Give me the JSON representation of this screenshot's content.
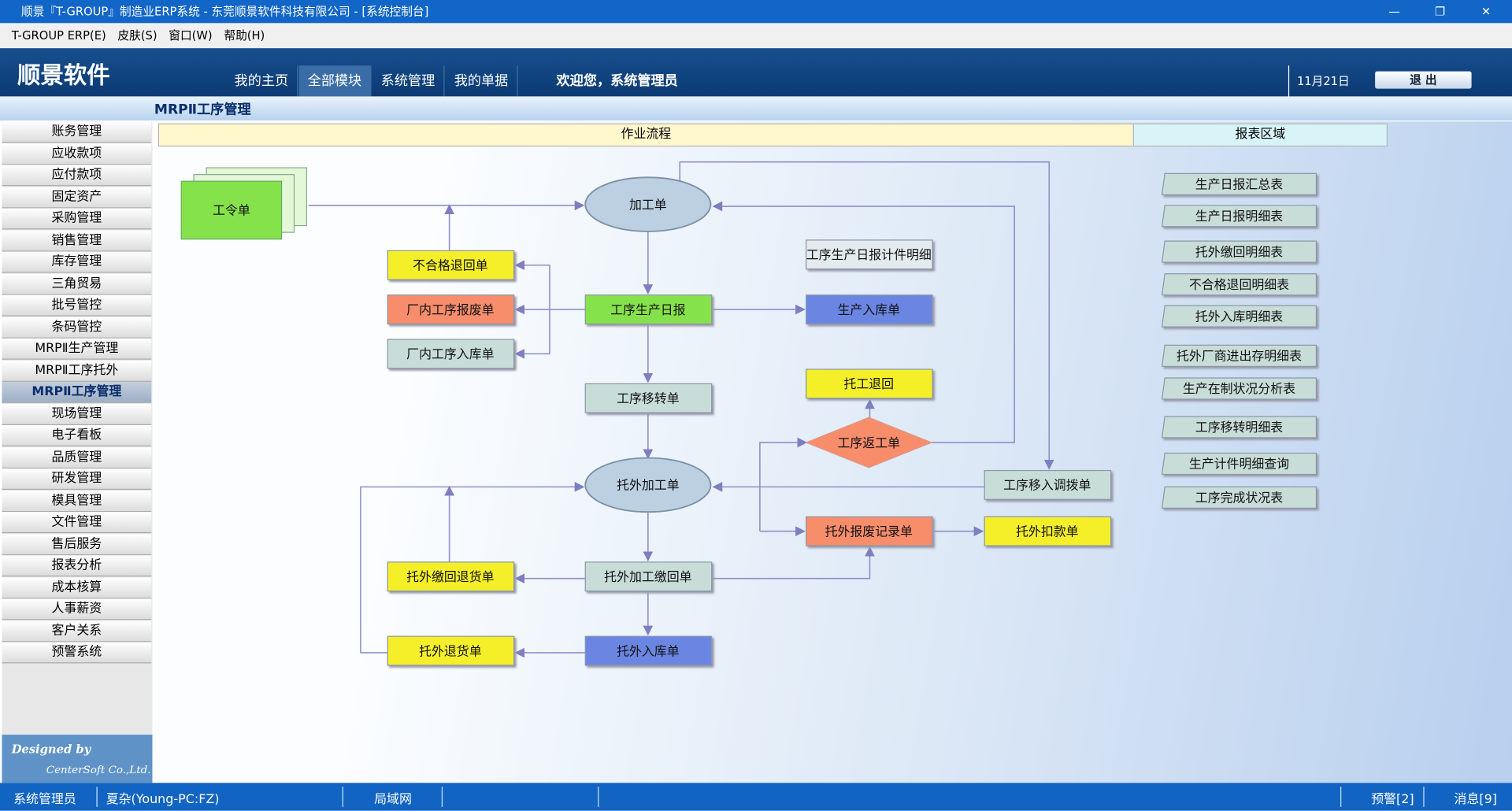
{
  "window": {
    "title": "顺景『T-GROUP』制造业ERP系统 - 东莞顺景软件科技有限公司 - [系统控制台]"
  },
  "menu": [
    "T-GROUP ERP(E)",
    "皮肤(S)",
    "窗口(W)",
    "帮助(H)"
  ],
  "header": {
    "logo": "顺景软件",
    "nav": [
      "我的主页",
      "全部模块",
      "系统管理",
      "我的单据"
    ],
    "welcome": "欢迎您，系统管理员",
    "date": "11月21日",
    "exit": "退 出"
  },
  "module_title": "MRPⅡ工序管理",
  "sidebar": {
    "items": [
      "账务管理",
      "应收款项",
      "应付款项",
      "固定资产",
      "采购管理",
      "销售管理",
      "库存管理",
      "三角贸易",
      "批号管控",
      "条码管控",
      "MRPⅡ生产管理",
      "MRPⅡ工序托外",
      "MRPⅡ工序管理",
      "现场管理",
      "电子看板",
      "品质管理",
      "研发管理",
      "模具管理",
      "文件管理",
      "售后服务",
      "报表分析",
      "成本核算",
      "人事薪资",
      "客户关系",
      "预警系统"
    ],
    "designed_by": "Designed by",
    "company": "CenterSoft Co.,Ltd."
  },
  "tabs": [
    "作业流程",
    "报表区域"
  ],
  "flow": {
    "nodes": [
      "工令单",
      "加工单",
      "不合格退回单",
      "厂内工序报废单",
      "厂内工序入库单",
      "工序生产日报",
      "生产入库单",
      "工序生产日报计件明细",
      "工序移转单",
      "托工退回",
      "工序返工单",
      "托外加工单",
      "工序移入调拨单",
      "托外报废记录单",
      "托外扣款单",
      "托外缴回退货单",
      "托外加工缴回单",
      "托外退货单",
      "托外入库单"
    ]
  },
  "reports": [
    "生产日报汇总表",
    "生产日报明细表",
    "托外缴回明细表",
    "不合格退回明细表",
    "托外入库明细表",
    "托外厂商进出存明细表",
    "生产在制状况分析表",
    "工序移转明细表",
    "生产计件明细查询",
    "工序完成状况表"
  ],
  "status": [
    "系统管理员",
    "夏杂(Young-PC:FZ)",
    "局域网",
    "预警[2]",
    "消息[9]"
  ]
}
